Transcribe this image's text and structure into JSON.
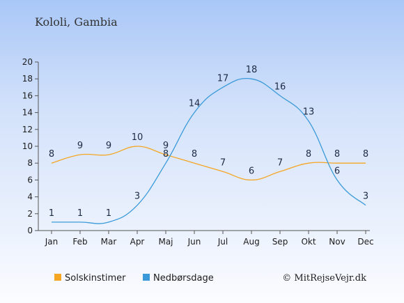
{
  "title": "Kololi, Gambia",
  "credit": "© MitRejseVejr.dk",
  "chart_data": {
    "type": "line",
    "categories": [
      "Jan",
      "Feb",
      "Mar",
      "Apr",
      "Maj",
      "Jun",
      "Jul",
      "Aug",
      "Sep",
      "Okt",
      "Nov",
      "Dec"
    ],
    "y_ticks": [
      0,
      2,
      4,
      6,
      8,
      10,
      12,
      14,
      16,
      18,
      20
    ],
    "ylim": [
      0,
      20
    ],
    "grid": false,
    "legend_position": "bottom",
    "series": [
      {
        "name": "Solskinstimer",
        "color": "#f5a623",
        "values": [
          8,
          9,
          9,
          10,
          9,
          8,
          7,
          6,
          7,
          8,
          8,
          8
        ]
      },
      {
        "name": "Nedbørsdage",
        "color": "#3a9ad9",
        "values": [
          1,
          1,
          1,
          3,
          8,
          14,
          17,
          18,
          16,
          13,
          6,
          3
        ]
      }
    ]
  }
}
